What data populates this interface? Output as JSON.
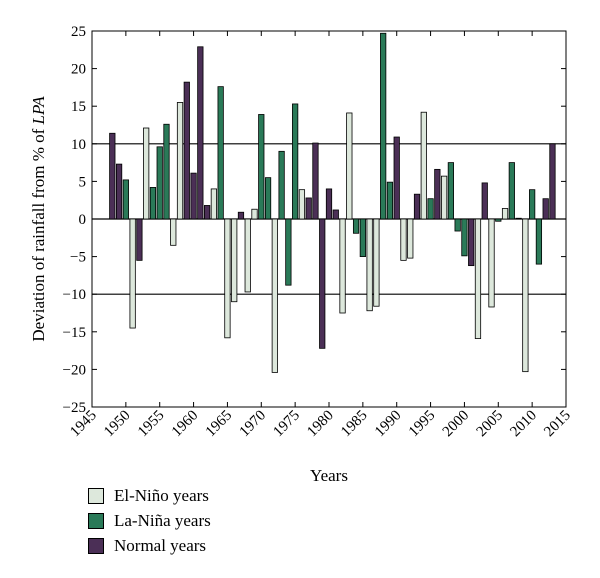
{
  "chart_data": {
    "type": "bar",
    "xlabel": "Years",
    "ylabel_prefix": "Deviation of rainfall from % of ",
    "ylabel_italic": "LPA",
    "xlim": [
      1945,
      2015
    ],
    "ylim": [
      -25,
      25
    ],
    "xticks": [
      1945,
      1950,
      1955,
      1960,
      1965,
      1970,
      1975,
      1980,
      1985,
      1990,
      1995,
      2000,
      2005,
      2010,
      2015
    ],
    "yticks": [
      25,
      20,
      15,
      10,
      5,
      0,
      -5,
      -10,
      -15,
      -20,
      -25
    ],
    "reference_lines": [
      10,
      -10
    ],
    "series": [
      {
        "name": "El-Niño years",
        "color": "#dde8dc",
        "points": [
          [
            1951,
            -14.5
          ],
          [
            1953,
            12.1
          ],
          [
            1957,
            -3.5
          ],
          [
            1958,
            15.5
          ],
          [
            1963,
            4.0
          ],
          [
            1965,
            -15.8
          ],
          [
            1966,
            -11.0
          ],
          [
            1968,
            -9.7
          ],
          [
            1969,
            1.3
          ],
          [
            1972,
            -20.4
          ],
          [
            1976,
            3.9
          ],
          [
            1982,
            -12.5
          ],
          [
            1983,
            14.1
          ],
          [
            1986,
            -12.2
          ],
          [
            1987,
            -11.6
          ],
          [
            1991,
            -5.5
          ],
          [
            1992,
            -5.2
          ],
          [
            1994,
            14.2
          ],
          [
            1997,
            5.7
          ],
          [
            2002,
            -15.9
          ],
          [
            2004,
            -11.7
          ],
          [
            2006,
            1.4
          ],
          [
            2009,
            -20.3
          ]
        ]
      },
      {
        "name": "La-Niña years",
        "color": "#2a7a58",
        "points": [
          [
            1950,
            5.2
          ],
          [
            1954,
            4.2
          ],
          [
            1955,
            9.6
          ],
          [
            1956,
            12.6
          ],
          [
            1964,
            17.6
          ],
          [
            1970,
            13.9
          ],
          [
            1971,
            5.5
          ],
          [
            1973,
            9.0
          ],
          [
            1974,
            -8.8
          ],
          [
            1975,
            15.3
          ],
          [
            1984,
            -1.9
          ],
          [
            1985,
            -5.0
          ],
          [
            1988,
            24.7
          ],
          [
            1989,
            4.9
          ],
          [
            1995,
            2.7
          ],
          [
            1998,
            7.5
          ],
          [
            1999,
            -1.6
          ],
          [
            2000,
            -4.9
          ],
          [
            2005,
            -0.3
          ],
          [
            2007,
            7.5
          ],
          [
            2010,
            3.9
          ],
          [
            2011,
            -6.0
          ]
        ]
      },
      {
        "name": "Normal years",
        "color": "#4b2f56",
        "points": [
          [
            1948,
            11.4
          ],
          [
            1949,
            7.3
          ],
          [
            1952,
            -5.5
          ],
          [
            1959,
            18.2
          ],
          [
            1960,
            6.1
          ],
          [
            1961,
            22.9
          ],
          [
            1962,
            1.8
          ],
          [
            1967,
            0.9
          ],
          [
            1977,
            2.8
          ],
          [
            1978,
            10.1
          ],
          [
            1979,
            -17.2
          ],
          [
            1980,
            4.0
          ],
          [
            1981,
            1.2
          ],
          [
            1990,
            10.9
          ],
          [
            1993,
            3.3
          ],
          [
            1996,
            6.6
          ],
          [
            2001,
            -6.2
          ],
          [
            2003,
            4.8
          ],
          [
            2008,
            0.1
          ],
          [
            2012,
            2.7
          ],
          [
            2013,
            10.0
          ]
        ]
      }
    ]
  }
}
